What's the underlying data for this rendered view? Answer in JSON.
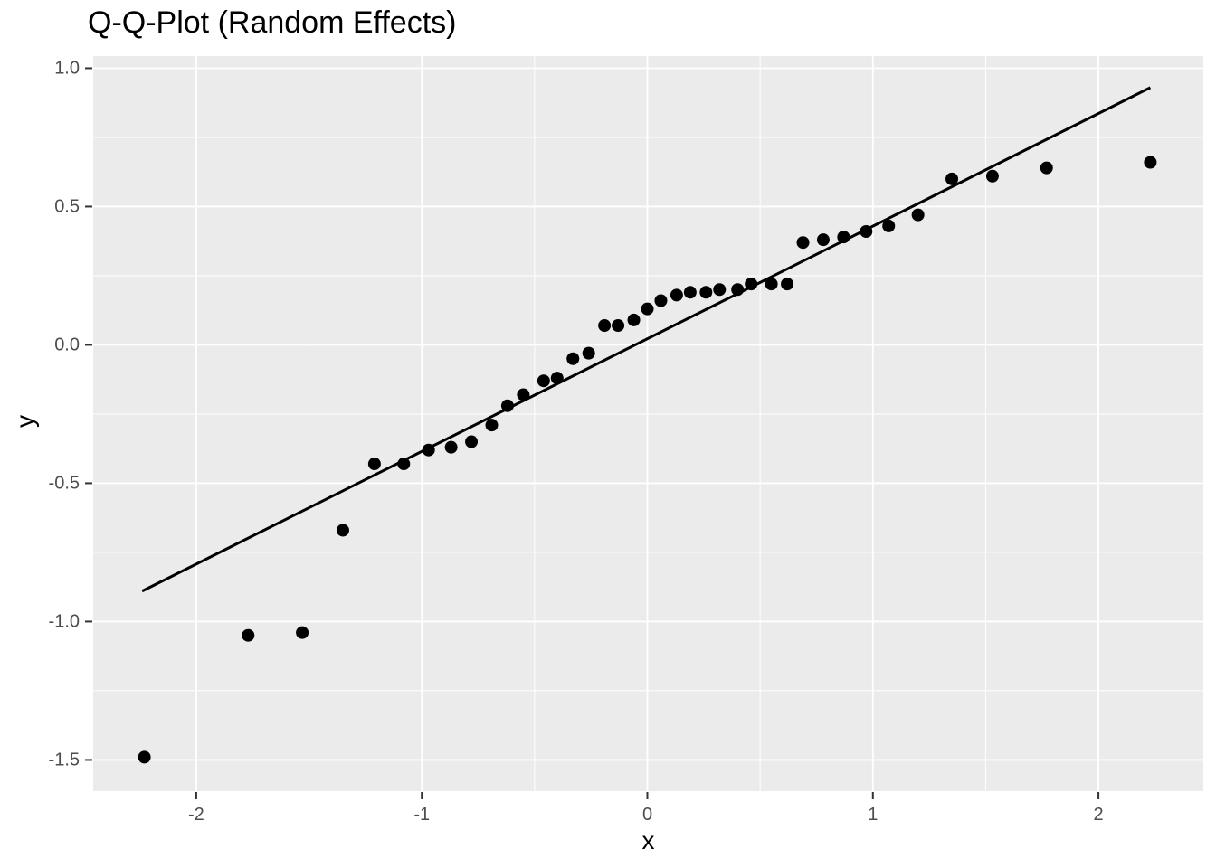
{
  "chart_data": {
    "type": "scatter",
    "title": "Q-Q-Plot (Random Effects)",
    "xlabel": "x",
    "ylabel": "y",
    "xlim": [
      -2.457,
      2.465
    ],
    "ylim": [
      -1.613,
      1.044
    ],
    "grid": "on",
    "legend_position": "none",
    "x_major_ticks": [
      -2,
      -1,
      0,
      1,
      2
    ],
    "x_tick_labels": [
      "-2",
      "-1",
      "0",
      "1",
      "2"
    ],
    "x_minor_ticks": [
      -1.5,
      -0.5,
      0.5,
      1.5
    ],
    "y_major_ticks": [
      1.0,
      0.5,
      0.0,
      -0.5,
      -1.0,
      -1.5
    ],
    "y_tick_labels": [
      "1.0",
      "0.5",
      "0.0",
      "-0.5",
      "-1.0",
      "-1.5"
    ],
    "y_minor_ticks": [
      0.75,
      0.25,
      -0.25,
      -0.75,
      -1.25
    ],
    "series": [
      {
        "name": "random-effects-sample-quantiles",
        "type": "points",
        "points": [
          [
            -2.23,
            -1.49
          ],
          [
            -1.77,
            -1.05
          ],
          [
            -1.53,
            -1.04
          ],
          [
            -1.35,
            -0.67
          ],
          [
            -1.21,
            -0.43
          ],
          [
            -1.08,
            -0.43
          ],
          [
            -0.97,
            -0.38
          ],
          [
            -0.87,
            -0.37
          ],
          [
            -0.78,
            -0.35
          ],
          [
            -0.69,
            -0.29
          ],
          [
            -0.62,
            -0.22
          ],
          [
            -0.55,
            -0.18
          ],
          [
            -0.46,
            -0.13
          ],
          [
            -0.4,
            -0.12
          ],
          [
            -0.33,
            -0.05
          ],
          [
            -0.26,
            -0.03
          ],
          [
            -0.19,
            0.07
          ],
          [
            -0.13,
            0.07
          ],
          [
            -0.06,
            0.09
          ],
          [
            0.0,
            0.13
          ],
          [
            0.06,
            0.16
          ],
          [
            0.13,
            0.18
          ],
          [
            0.19,
            0.19
          ],
          [
            0.26,
            0.19
          ],
          [
            0.32,
            0.2
          ],
          [
            0.4,
            0.2
          ],
          [
            0.46,
            0.22
          ],
          [
            0.55,
            0.22
          ],
          [
            0.62,
            0.22
          ],
          [
            0.69,
            0.37
          ],
          [
            0.78,
            0.38
          ],
          [
            0.87,
            0.39
          ],
          [
            0.97,
            0.41
          ],
          [
            1.07,
            0.43
          ],
          [
            1.2,
            0.47
          ],
          [
            1.35,
            0.6
          ],
          [
            1.53,
            0.61
          ],
          [
            1.77,
            0.64
          ],
          [
            2.23,
            0.66
          ]
        ]
      },
      {
        "name": "qq-reference-line",
        "type": "line",
        "points": [
          [
            -2.24,
            -0.89
          ],
          [
            2.23,
            0.93
          ]
        ]
      }
    ],
    "colors": {
      "figure_background": "#FFFFFF",
      "panel_background": "#EBEBEB",
      "grid_line": "#FFFFFF",
      "point": "#000000",
      "reference_line": "#000000",
      "tick_label": "#4D4D4D",
      "tick_mark": "#333333",
      "title": "#000000",
      "axis_title": "#000000"
    }
  }
}
